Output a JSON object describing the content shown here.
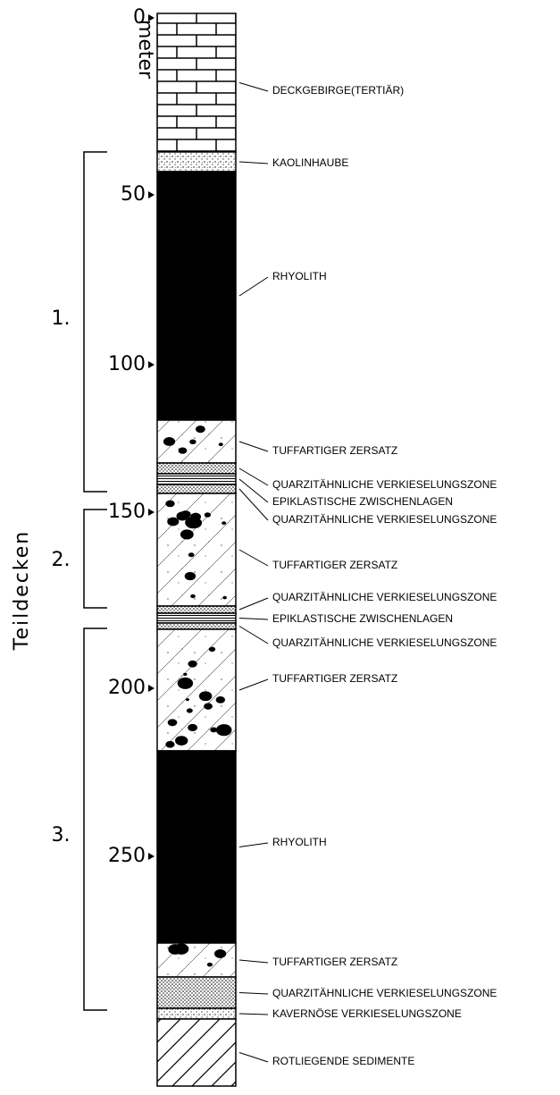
{
  "depth_axis": {
    "unit": "meter",
    "ticks": [
      "0",
      "50",
      "100",
      "150",
      "200",
      "250"
    ]
  },
  "group_axis": {
    "title": "Teildecken",
    "groups": [
      "1.",
      "2.",
      "3."
    ]
  },
  "layers": [
    {
      "label": "DECKGEBIRGE(TERTIÄR)"
    },
    {
      "label": "KAOLINHAUBE"
    },
    {
      "label": "RHYOLITH"
    },
    {
      "label": "TUFFARTIGER ZERSATZ"
    },
    {
      "label": "QUARZITÄHNLICHE VERKIESELUNGSZONE"
    },
    {
      "label": "EPIKLASTISCHE ZWISCHENLAGEN"
    },
    {
      "label": "QUARZITÄHNLICHE VERKIESELUNGSZONE"
    },
    {
      "label": "TUFFARTIGER ZERSATZ"
    },
    {
      "label": "QUARZITÄHNLICHE VERKIESELUNGSZONE"
    },
    {
      "label": "EPIKLASTISCHE ZWISCHENLAGEN"
    },
    {
      "label": "QUARZITÄHNLICHE VERKIESELUNGSZONE"
    },
    {
      "label": "TUFFARTIGER ZERSATZ"
    },
    {
      "label": "RHYOLITH"
    },
    {
      "label": "TUFFARTIGER ZERSATZ"
    },
    {
      "label": "QUARZITÄHNLICHE VERKIESELUNGSZONE"
    },
    {
      "label": "KAVERNÖSE VERKIESELUNGSZONE"
    },
    {
      "label": "ROTLIEGENDE SEDIMENTE"
    }
  ]
}
